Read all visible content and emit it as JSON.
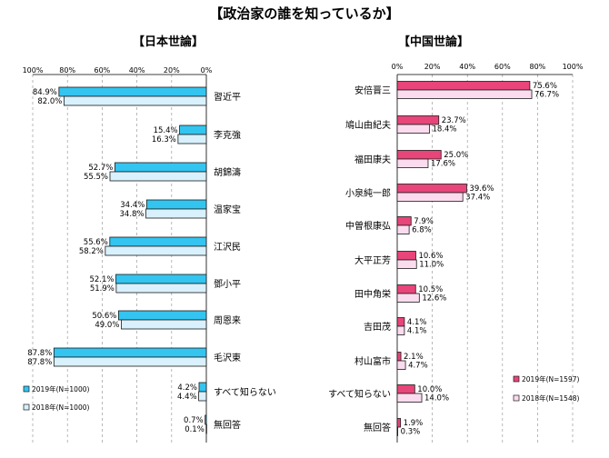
{
  "title": "【政治家の誰を知っているか】",
  "chart_data": [
    {
      "type": "bar",
      "orientation": "horizontal",
      "direction": "right-to-left",
      "title": "【日本世論】",
      "categories": [
        "習近平",
        "李克強",
        "胡錦濤",
        "温家宝",
        "江沢民",
        "鄧小平",
        "周恩来",
        "毛沢東",
        "すべて知らない",
        "無回答"
      ],
      "xlim": [
        0,
        100
      ],
      "ticks": [
        "100%",
        "80%",
        "60%",
        "40%",
        "20%",
        "0%"
      ],
      "series": [
        {
          "name": "2019年(N=1000)",
          "color": "#33c4f0",
          "values": [
            84.9,
            15.4,
            52.7,
            34.4,
            55.6,
            52.1,
            50.6,
            87.8,
            4.2,
            0.7
          ],
          "labels": [
            "84.9%",
            "15.4%",
            "52.7%",
            "34.4%",
            "55.6%",
            "52.1%",
            "50.6%",
            "87.8%",
            "4.2%",
            "0.7%"
          ]
        },
        {
          "name": "2018年(N=1000)",
          "color": "#d8f1fc",
          "values": [
            82.0,
            16.3,
            55.5,
            34.8,
            58.2,
            51.9,
            49.0,
            87.8,
            4.4,
            0.1
          ],
          "labels": [
            "82.0%",
            "16.3%",
            "55.5%",
            "34.8%",
            "58.2%",
            "51.9%",
            "49.0%",
            "87.8%",
            "4.4%",
            "0.1%"
          ]
        }
      ],
      "legend_position": "bottom-left",
      "grid": true
    },
    {
      "type": "bar",
      "orientation": "horizontal",
      "direction": "left-to-right",
      "title": "【中国世論】",
      "categories": [
        "安倍晋三",
        "鳩山由紀夫",
        "福田康夫",
        "小泉純一郎",
        "中曽根康弘",
        "大平正芳",
        "田中角栄",
        "吉田茂",
        "村山富市",
        "すべて知らない",
        "無回答"
      ],
      "xlim": [
        0,
        100
      ],
      "ticks": [
        "0%",
        "20%",
        "40%",
        "60%",
        "80%",
        "100%"
      ],
      "series": [
        {
          "name": "2019年(N=1597)",
          "color": "#e8457a",
          "values": [
            75.6,
            23.7,
            25.0,
            39.6,
            7.9,
            10.6,
            10.5,
            4.1,
            2.1,
            10.0,
            1.9
          ],
          "labels": [
            "75.6%",
            "23.7%",
            "25.0%",
            "39.6%",
            "7.9%",
            "10.6%",
            "10.5%",
            "4.1%",
            "2.1%",
            "10.0%",
            "1.9%"
          ]
        },
        {
          "name": "2018年(N=1548)",
          "color": "#fbdcee",
          "values": [
            76.7,
            18.4,
            17.6,
            37.4,
            6.8,
            11.0,
            12.6,
            4.1,
            4.7,
            14.0,
            0.3
          ],
          "labels": [
            "76.7%",
            "18.4%",
            "17.6%",
            "37.4%",
            "6.8%",
            "11.0%",
            "12.6%",
            "4.1%",
            "4.7%",
            "14.0%",
            "0.3%"
          ]
        }
      ],
      "legend_position": "bottom-right",
      "grid": true
    }
  ]
}
